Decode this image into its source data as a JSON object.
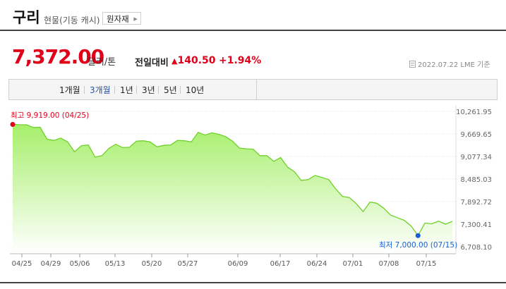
{
  "header": {
    "title": "구리",
    "subtitle": "현물(기동 캐시)",
    "button_label": "원자재"
  },
  "quote": {
    "price": "7,372.00",
    "unit": "달러/톤",
    "compare_label": "전일대비",
    "change_arrow": "▲",
    "change_value": "140.50",
    "change_percent": "+1.94%",
    "date_info": "2022.07.22  LME 기준"
  },
  "tabs": [
    {
      "label": "1개월",
      "active": false
    },
    {
      "label": "3개월",
      "active": true
    },
    {
      "label": "1년",
      "active": false
    },
    {
      "label": "3년",
      "active": false
    },
    {
      "label": "5년",
      "active": false
    },
    {
      "label": "10년",
      "active": false
    }
  ],
  "colors": {
    "price_red": "#e0001a",
    "line_green": "#6fd12b",
    "fill_top": "#a6ef6a",
    "fill_bottom": "#ffffff",
    "active_tab": "#2b4fa0"
  },
  "chart_data": {
    "type": "area",
    "xlabel": "",
    "ylabel": "",
    "ylim": [
      6708.1,
      10261.95
    ],
    "y_ticks": [
      "10,261.95",
      "9,669.65",
      "9,077.34",
      "8,485.03",
      "7,892.72",
      "7,300.41",
      "6,708.10"
    ],
    "x_ticks": [
      "04/25",
      "04/29",
      "05/06",
      "05/13",
      "05/20",
      "05/27",
      "06/09",
      "06/17",
      "06/24",
      "07/01",
      "07/08",
      "07/15"
    ],
    "max_label": "최고  9,919.00 (04/25)",
    "min_label": "최저  7,000.00 (07/15)",
    "series": [
      {
        "values": [
          9919,
          9912,
          9910,
          9840,
          9845,
          9530,
          9500,
          9560,
          9460,
          9200,
          9360,
          9380,
          9060,
          9100,
          9290,
          9400,
          9310,
          9320,
          9480,
          9490,
          9460,
          9330,
          9370,
          9380,
          9500,
          9490,
          9460,
          9710,
          9640,
          9700,
          9660,
          9600,
          9480,
          9300,
          9280,
          9270,
          9100,
          9100,
          8950,
          9050,
          8800,
          8680,
          8450,
          8470,
          8580,
          8530,
          8470,
          8230,
          8030,
          8000,
          7840,
          7630,
          7880,
          7850,
          7720,
          7540,
          7470,
          7400,
          7250,
          7000,
          7330,
          7310,
          7380,
          7300,
          7372
        ]
      }
    ]
  }
}
